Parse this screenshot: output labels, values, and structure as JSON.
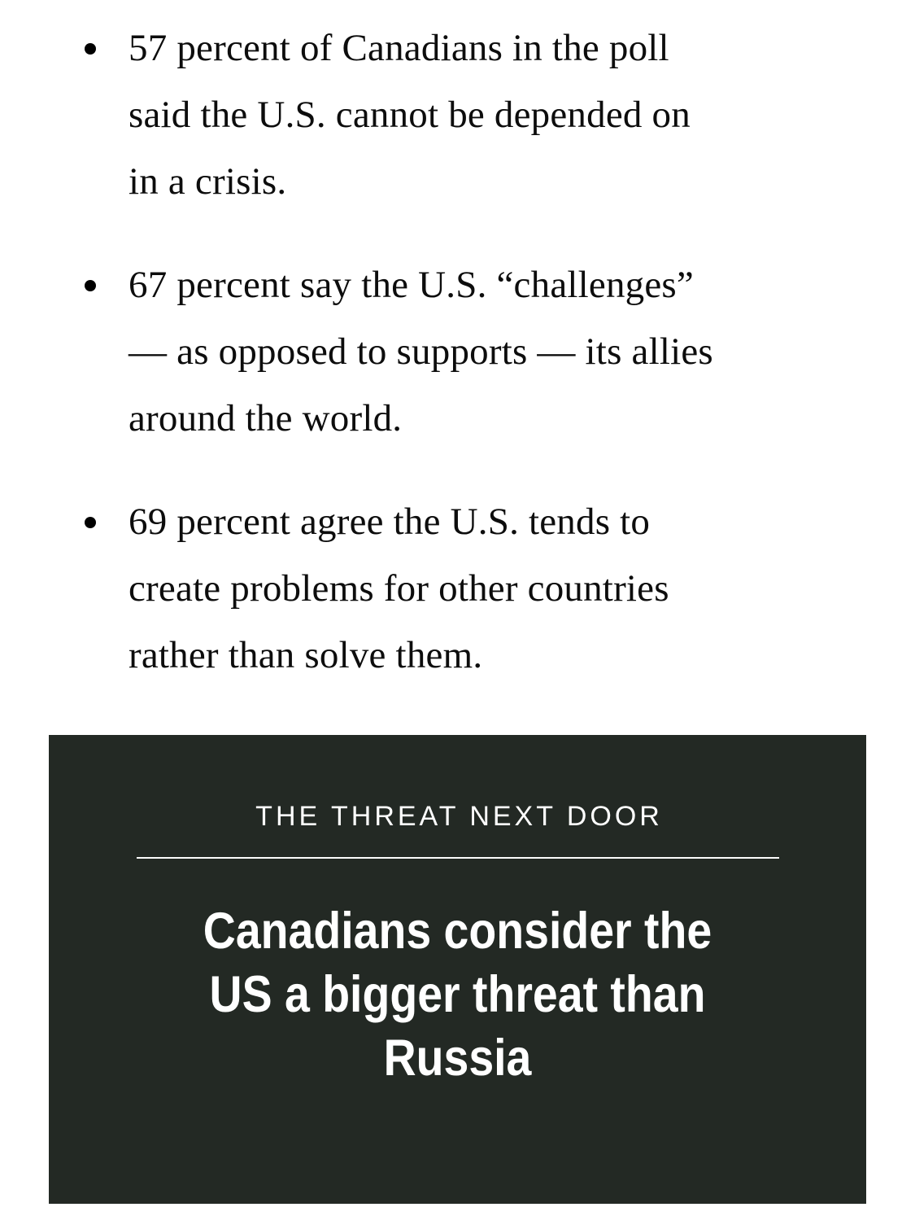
{
  "article": {
    "bullets": [
      {
        "lines": [
          "57 percent of Canadians in the poll",
          "said the U.S. cannot be depended on",
          "in a crisis."
        ]
      },
      {
        "lines": [
          "67 percent say the U.S. “challenges”",
          "— as opposed to supports — its allies",
          "around the world."
        ]
      },
      {
        "lines": [
          "69 percent agree the U.S. tends to",
          "create problems for other countries",
          "rather than solve them."
        ]
      }
    ]
  },
  "card": {
    "kicker": "THE THREAT NEXT DOOR",
    "headline_lines": [
      "Canadians consider the",
      "US a bigger threat than",
      "Russia"
    ],
    "colors": {
      "background": "#232924",
      "text": "#ffffff",
      "divider": "#fbfbfb"
    }
  },
  "page": {
    "background": "#ffffff",
    "body_text_color": "#0d0d0d"
  }
}
